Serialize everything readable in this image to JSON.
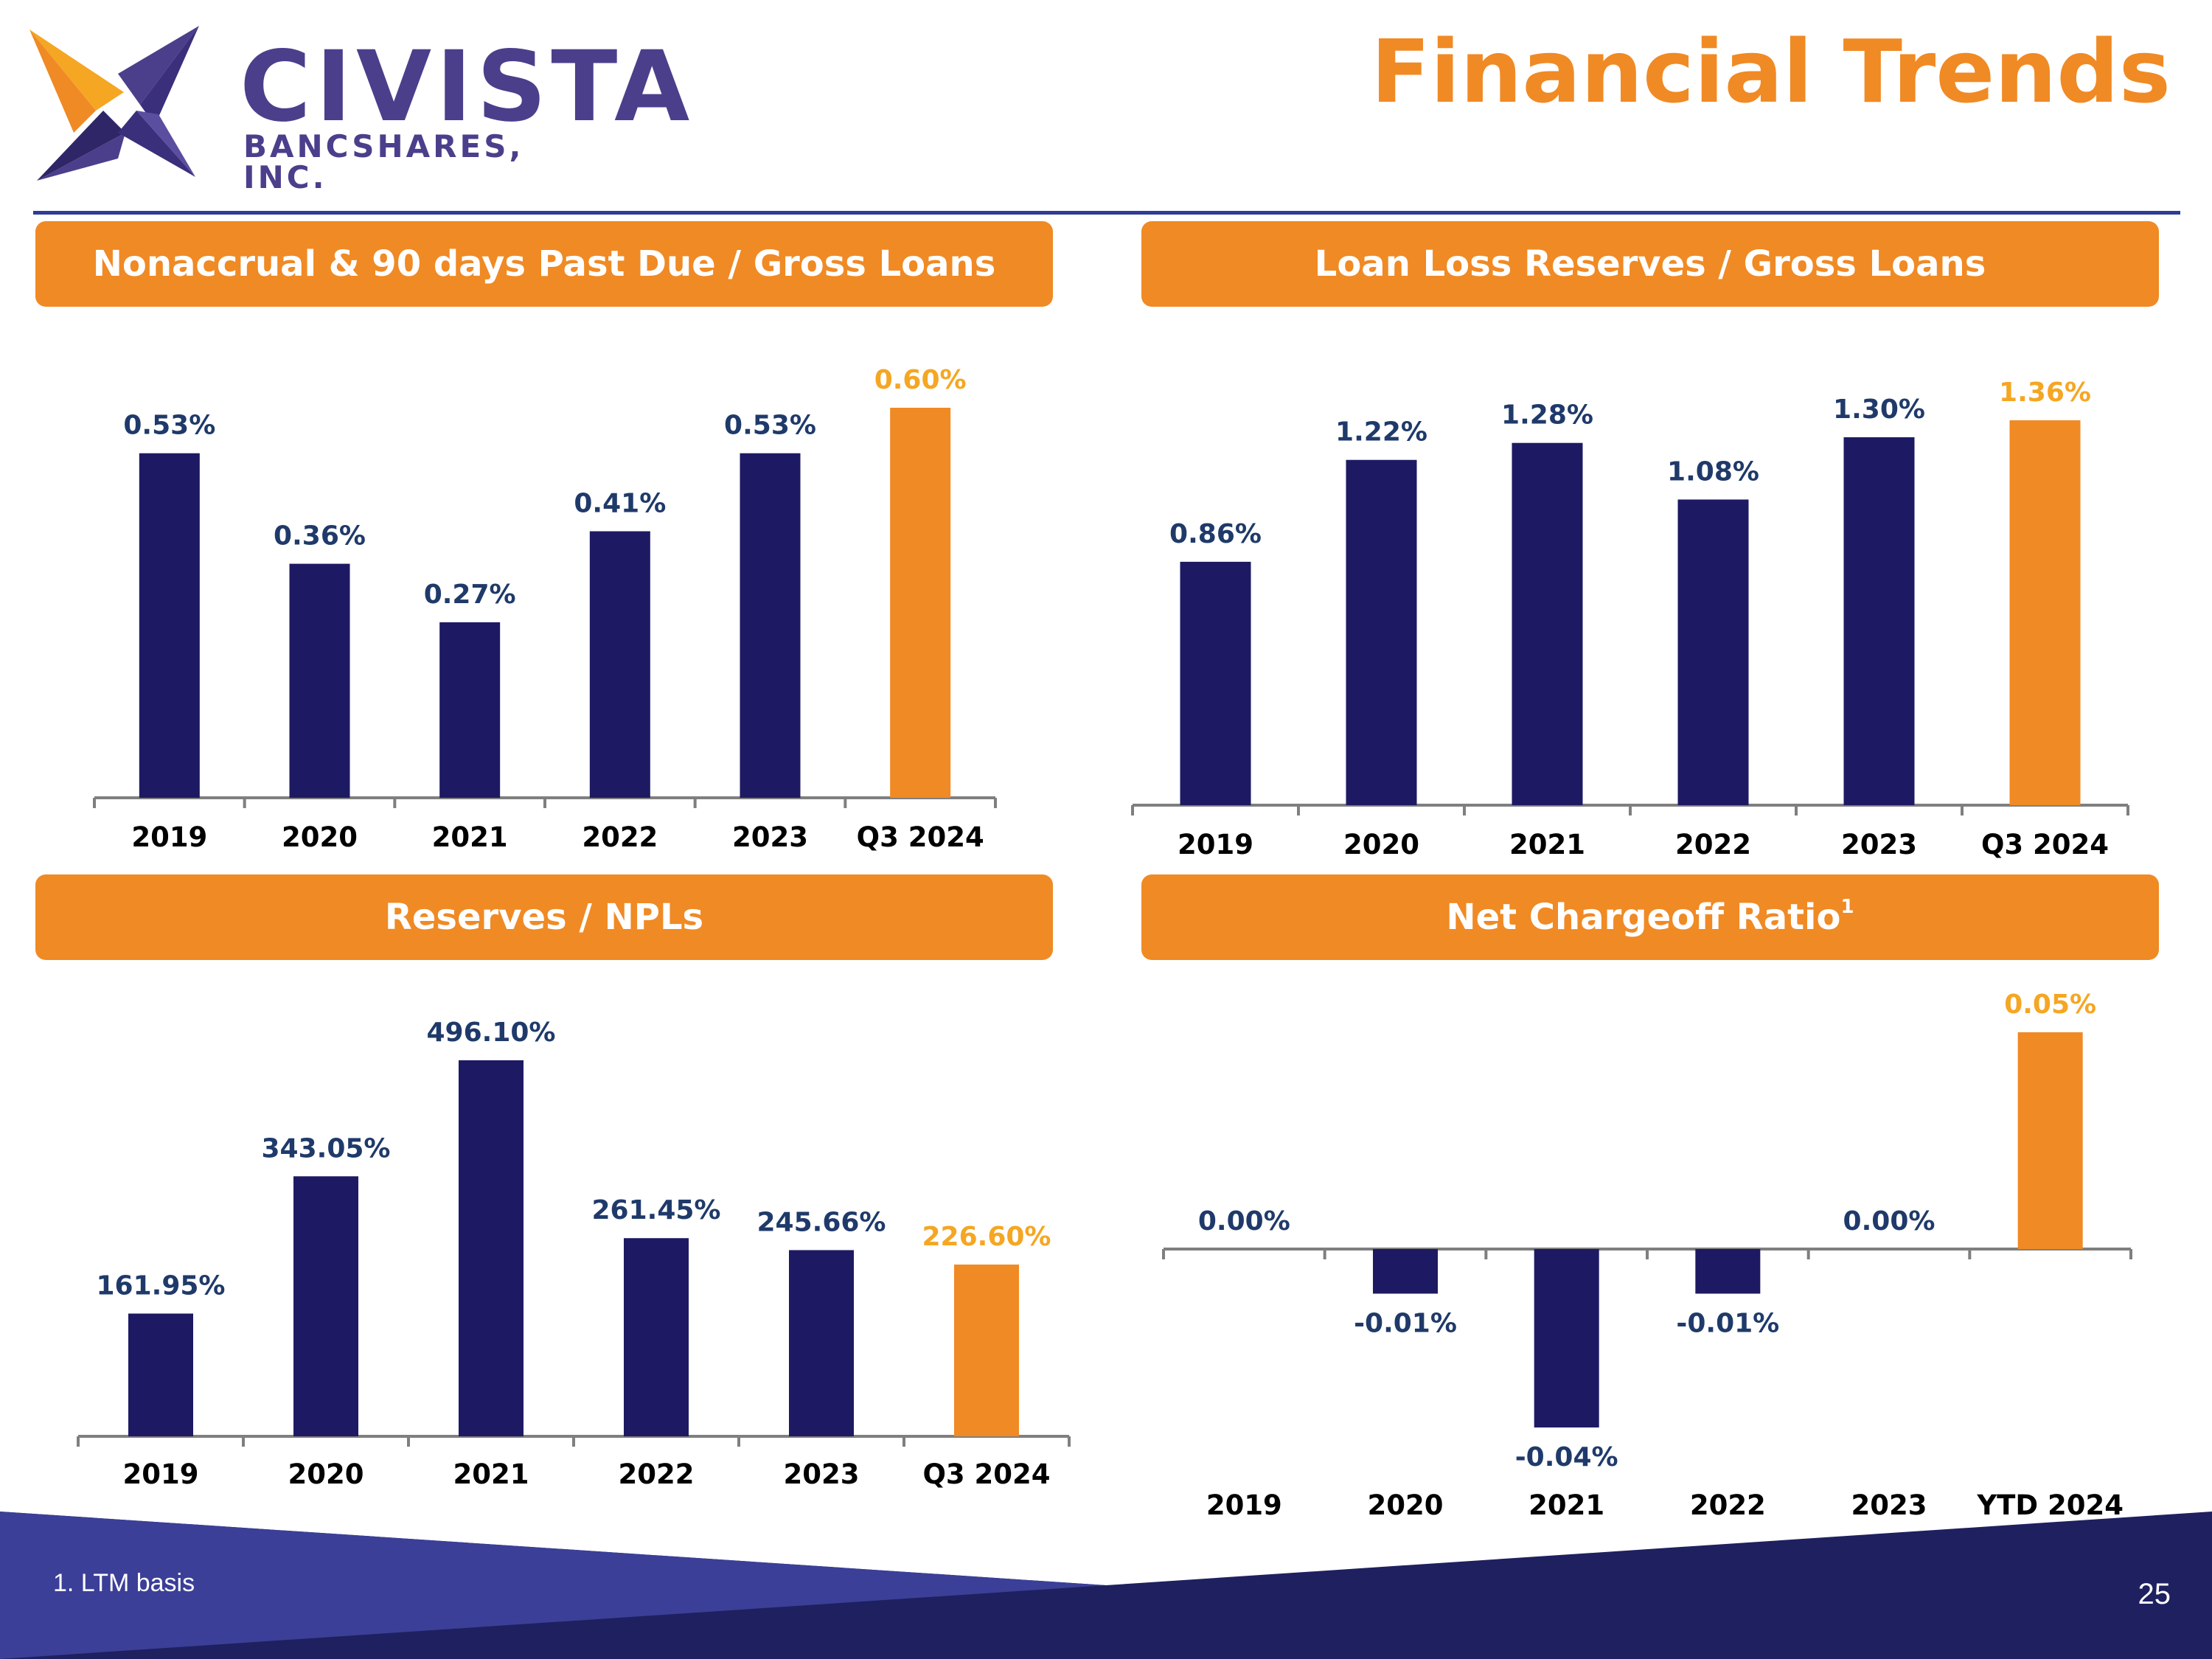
{
  "header": {
    "title": "Financial Trends",
    "logo": {
      "name": "CIVISTA",
      "subtitle": "BANCSHARES, INC."
    }
  },
  "colors": {
    "navy": "#1d1a63",
    "orange": "#f08a24",
    "label_navy": "#1f3a6a",
    "label_orange": "#f5a623"
  },
  "chart_data": [
    {
      "type": "bar",
      "title": "Nonaccrual & 90 days Past Due / Gross Loans",
      "categories": [
        "2019",
        "2020",
        "2021",
        "2022",
        "2023",
        "Q3 2024"
      ],
      "values": [
        0.53,
        0.36,
        0.27,
        0.41,
        0.53,
        0.6
      ],
      "labels": [
        "0.53%",
        "0.36%",
        "0.27%",
        "0.41%",
        "0.53%",
        "0.60%"
      ],
      "highlight_index": 5,
      "ylim": [
        0,
        0.6
      ]
    },
    {
      "type": "bar",
      "title": "Loan Loss Reserves / Gross Loans",
      "categories": [
        "2019",
        "2020",
        "2021",
        "2022",
        "2023",
        "Q3 2024"
      ],
      "values": [
        0.86,
        1.22,
        1.28,
        1.08,
        1.3,
        1.36
      ],
      "labels": [
        "0.86%",
        "1.22%",
        "1.28%",
        "1.08%",
        "1.30%",
        "1.36%"
      ],
      "highlight_index": 5,
      "ylim": [
        0,
        1.36
      ]
    },
    {
      "type": "bar",
      "title": "Reserves / NPLs",
      "categories": [
        "2019",
        "2020",
        "2021",
        "2022",
        "2023",
        "Q3 2024"
      ],
      "values": [
        161.95,
        343.05,
        496.1,
        261.45,
        245.66,
        226.6
      ],
      "labels": [
        "161.95%",
        "343.05%",
        "496.10%",
        "261.45%",
        "245.66%",
        "226.60%"
      ],
      "highlight_index": 5,
      "ylim": [
        0,
        496.1
      ]
    },
    {
      "type": "bar",
      "title": "Net Chargeoff Ratio",
      "title_sup": "1",
      "categories": [
        "2019",
        "2020",
        "2021",
        "2022",
        "2023",
        "YTD 2024"
      ],
      "values": [
        0.0,
        -0.01,
        -0.04,
        -0.01,
        0.0,
        0.05
      ],
      "labels": [
        "0.00%",
        "-0.01%",
        "-0.04%",
        "-0.01%",
        "0.00%",
        "0.05%"
      ],
      "highlight_index": 5,
      "ylim": [
        -0.04,
        0.05
      ]
    }
  ],
  "footer": {
    "footnote": "1. LTM basis",
    "page_number": "25"
  }
}
